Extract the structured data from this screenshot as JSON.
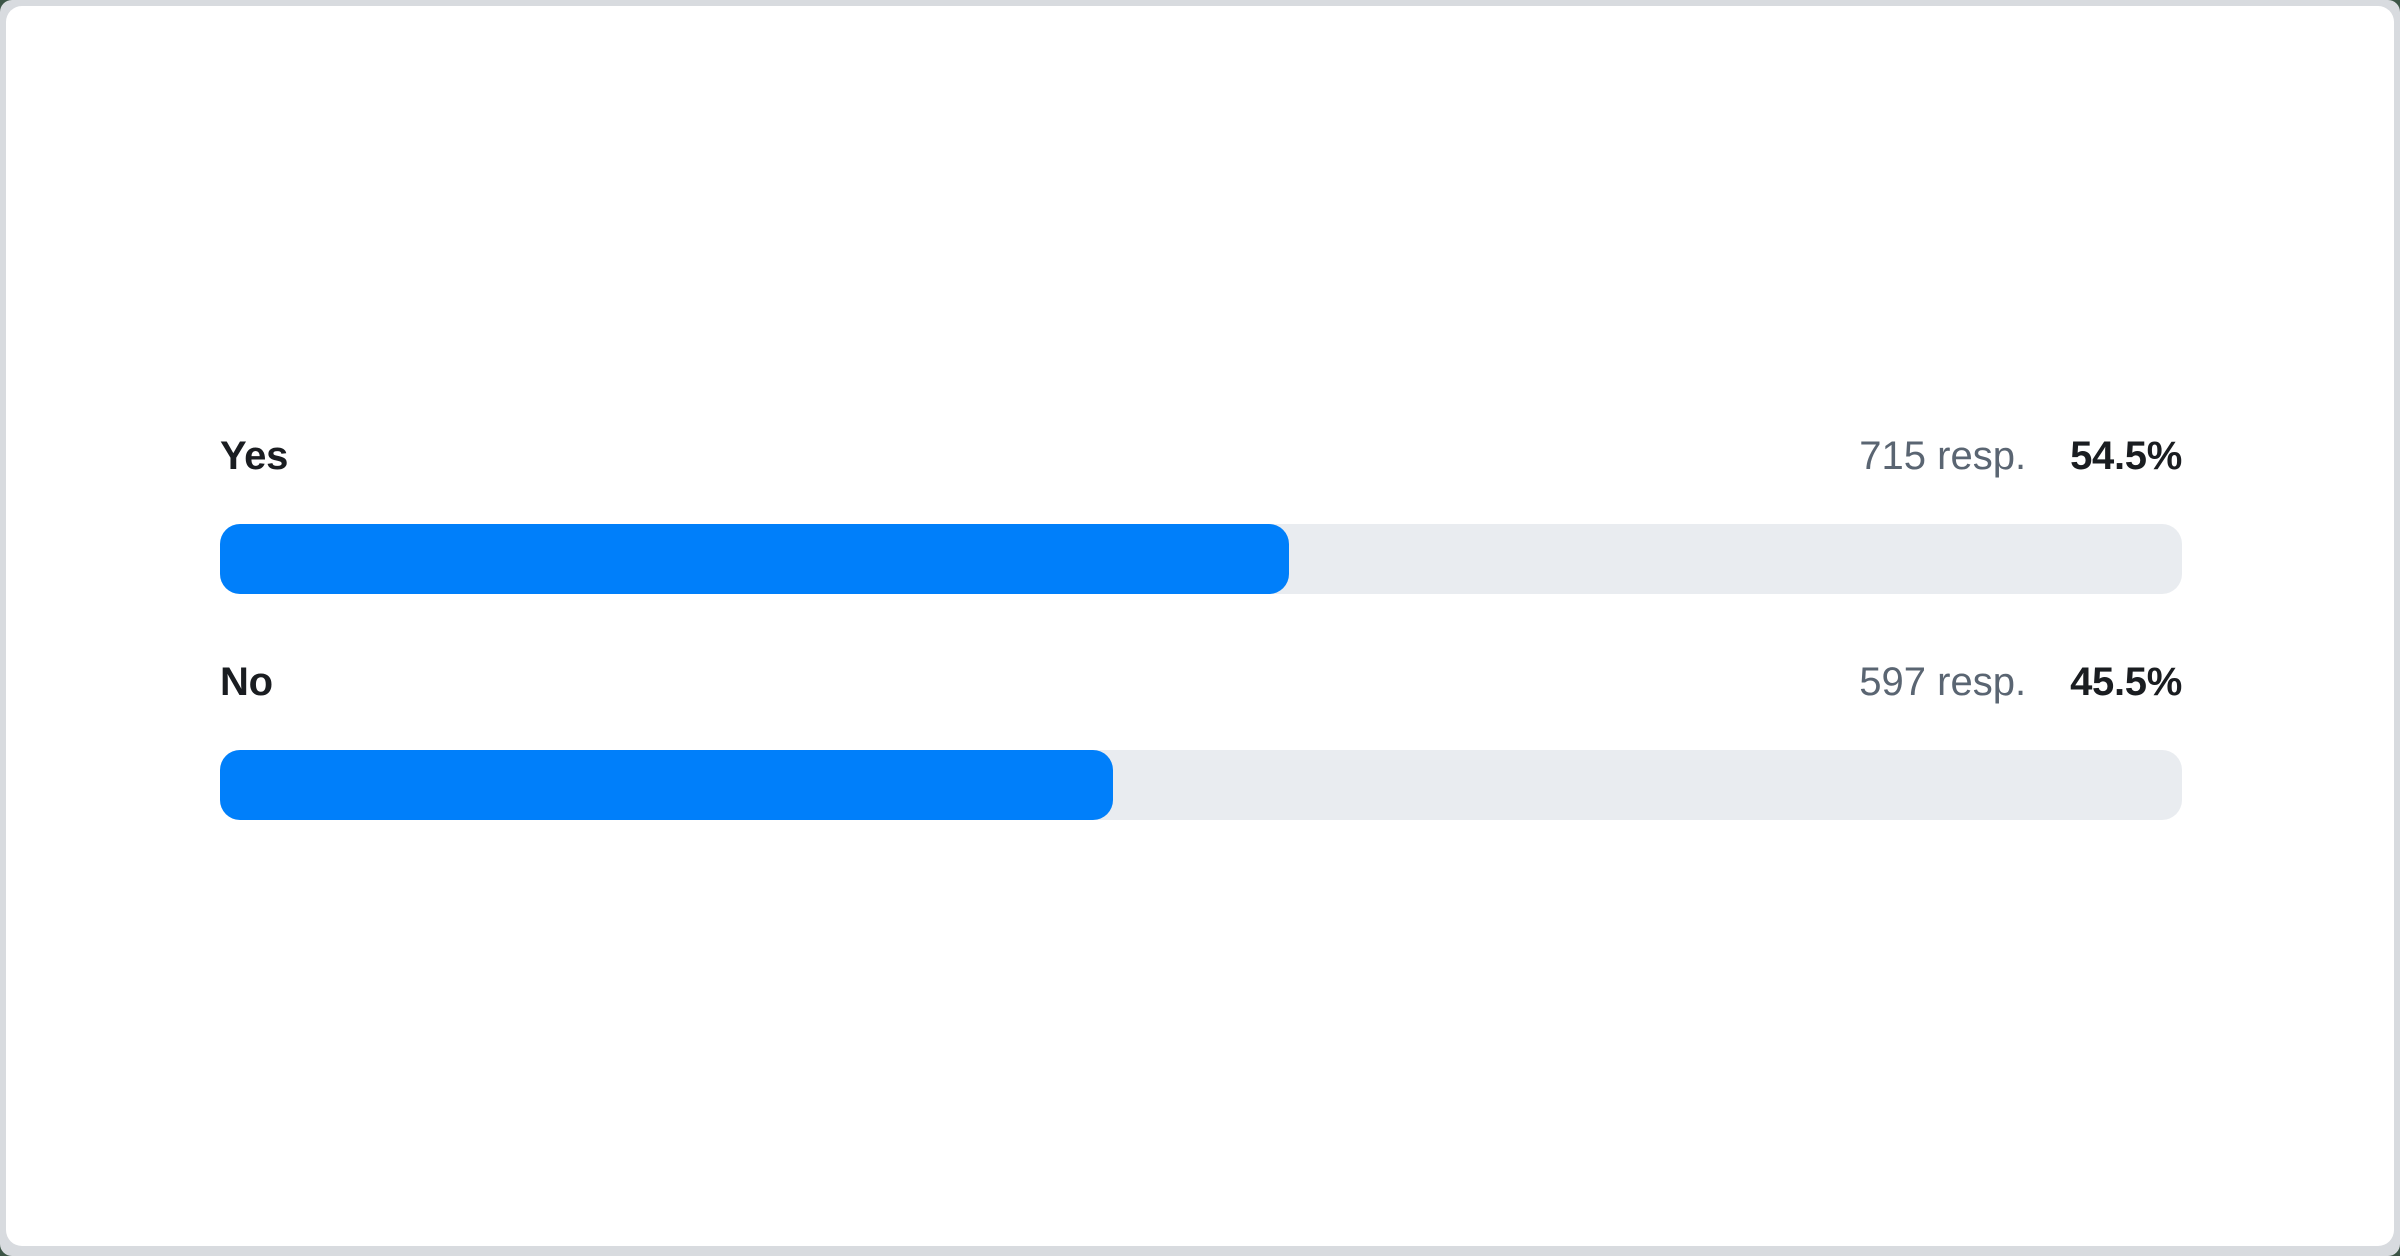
{
  "poll": {
    "rows": [
      {
        "label": "Yes",
        "responses_label": "715 resp.",
        "percent_label": "54.5%",
        "percent_value": 54.5
      },
      {
        "label": "No",
        "responses_label": "597 resp.",
        "percent_label": "45.5%",
        "percent_value": 45.5
      }
    ]
  },
  "chart_data": {
    "type": "bar",
    "orientation": "horizontal",
    "title": "",
    "xlabel": "",
    "ylabel": "",
    "categories": [
      "Yes",
      "No"
    ],
    "series": [
      {
        "name": "Responses",
        "values": [
          715,
          597
        ]
      }
    ],
    "percentages": [
      54.5,
      45.5
    ],
    "percent_labels": [
      "54.5%",
      "45.5%"
    ],
    "responses_labels": [
      "715 resp.",
      "597 resp."
    ],
    "xlim": [
      0,
      100
    ],
    "grid": false,
    "legend": false,
    "layout": "label left, response count and bold percentage right-aligned above each full-width rounded bar"
  },
  "colors": {
    "bar_fill": "#007ffa",
    "bar_track": "#e9ecf0",
    "label_color": "#1a1d21",
    "muted_color": "#5a6572",
    "card_bg": "#ffffff",
    "frame_bg": "#d8dbdf",
    "page_bg": "#3c5546"
  }
}
